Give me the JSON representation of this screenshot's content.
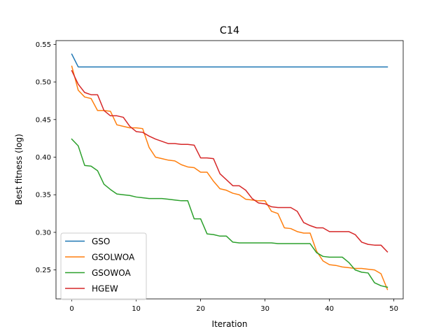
{
  "chart_data": {
    "type": "line",
    "title": "C14",
    "xlabel": "Iteration",
    "ylabel": "Best fitness (log)",
    "xlim": [
      -2.45,
      51.45
    ],
    "ylim": [
      0.2115,
      0.555
    ],
    "xticks": [
      0,
      10,
      20,
      30,
      40,
      50
    ],
    "yticks": [
      0.25,
      0.3,
      0.35,
      0.4,
      0.45,
      0.5,
      0.55
    ],
    "ytick_labels": [
      "0.25",
      "0.30",
      "0.35",
      "0.40",
      "0.45",
      "0.50",
      "0.55"
    ],
    "grid": false,
    "legend_position": "lower-left",
    "x": [
      0,
      1,
      2,
      3,
      4,
      5,
      6,
      7,
      8,
      9,
      10,
      11,
      12,
      13,
      14,
      15,
      16,
      17,
      18,
      19,
      20,
      21,
      22,
      23,
      24,
      25,
      26,
      27,
      28,
      29,
      30,
      31,
      32,
      33,
      34,
      35,
      36,
      37,
      38,
      39,
      40,
      41,
      42,
      43,
      44,
      45,
      46,
      47,
      48,
      49
    ],
    "series": [
      {
        "name": "GSO",
        "color": "#1f77b4",
        "values": [
          0.537,
          0.52,
          0.52,
          0.52,
          0.52,
          0.52,
          0.52,
          0.52,
          0.52,
          0.52,
          0.52,
          0.52,
          0.52,
          0.52,
          0.52,
          0.52,
          0.52,
          0.52,
          0.52,
          0.52,
          0.52,
          0.52,
          0.52,
          0.52,
          0.52,
          0.52,
          0.52,
          0.52,
          0.52,
          0.52,
          0.52,
          0.52,
          0.52,
          0.52,
          0.52,
          0.52,
          0.52,
          0.52,
          0.52,
          0.52,
          0.52,
          0.52,
          0.52,
          0.52,
          0.52,
          0.52,
          0.52,
          0.52,
          0.52,
          0.52
        ]
      },
      {
        "name": "GSOLWOA",
        "color": "#ff7f0e",
        "values": [
          0.521,
          0.489,
          0.48,
          0.478,
          0.462,
          0.462,
          0.461,
          0.443,
          0.441,
          0.439,
          0.439,
          0.438,
          0.413,
          0.4,
          0.398,
          0.396,
          0.395,
          0.39,
          0.387,
          0.386,
          0.38,
          0.38,
          0.368,
          0.358,
          0.356,
          0.352,
          0.35,
          0.344,
          0.343,
          0.342,
          0.342,
          0.328,
          0.325,
          0.306,
          0.305,
          0.301,
          0.299,
          0.299,
          0.275,
          0.262,
          0.257,
          0.256,
          0.254,
          0.253,
          0.252,
          0.252,
          0.251,
          0.25,
          0.245,
          0.224
        ]
      },
      {
        "name": "GSOWOA",
        "color": "#2ca02c",
        "values": [
          0.424,
          0.415,
          0.389,
          0.388,
          0.382,
          0.364,
          0.357,
          0.351,
          0.35,
          0.349,
          0.347,
          0.346,
          0.345,
          0.345,
          0.345,
          0.344,
          0.343,
          0.342,
          0.342,
          0.318,
          0.318,
          0.298,
          0.297,
          0.295,
          0.295,
          0.287,
          0.286,
          0.286,
          0.286,
          0.286,
          0.286,
          0.286,
          0.285,
          0.285,
          0.285,
          0.285,
          0.285,
          0.285,
          0.273,
          0.268,
          0.267,
          0.267,
          0.267,
          0.26,
          0.25,
          0.247,
          0.246,
          0.233,
          0.229,
          0.227
        ]
      },
      {
        "name": "HGEW",
        "color": "#d62728",
        "values": [
          0.515,
          0.497,
          0.486,
          0.483,
          0.483,
          0.462,
          0.455,
          0.455,
          0.453,
          0.441,
          0.434,
          0.433,
          0.428,
          0.424,
          0.421,
          0.418,
          0.418,
          0.417,
          0.417,
          0.416,
          0.399,
          0.399,
          0.398,
          0.378,
          0.37,
          0.362,
          0.362,
          0.356,
          0.345,
          0.339,
          0.338,
          0.334,
          0.333,
          0.333,
          0.333,
          0.328,
          0.313,
          0.309,
          0.306,
          0.306,
          0.301,
          0.301,
          0.301,
          0.301,
          0.297,
          0.287,
          0.284,
          0.283,
          0.283,
          0.274
        ]
      }
    ]
  }
}
